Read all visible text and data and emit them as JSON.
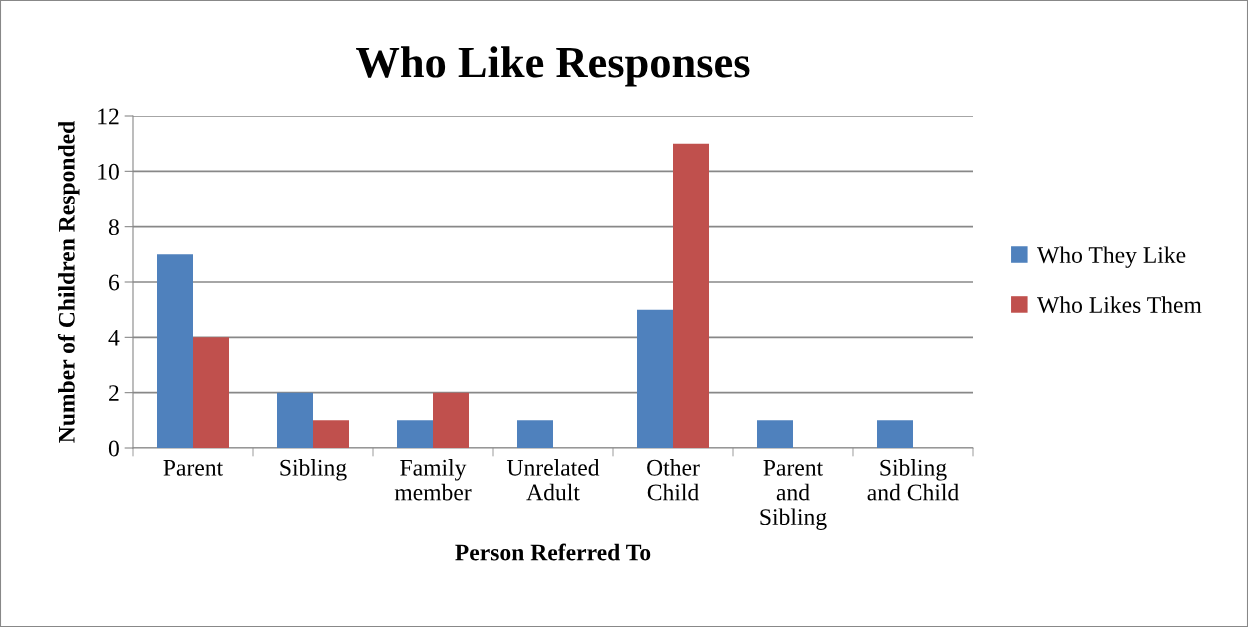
{
  "chart_data": {
    "type": "bar",
    "title": "Who Like Responses",
    "xlabel": "Person Referred To",
    "ylabel": "Number of Children Responded",
    "categories": [
      "Parent",
      "Sibling",
      "Family\nmember",
      "Unrelated\nAdult",
      "Other\nChild",
      "Parent\nand\nSibling",
      "Sibling\nand Child"
    ],
    "series": [
      {
        "name": "Who They Like",
        "color": "#4f81bd",
        "values": [
          7,
          2,
          1,
          1,
          5,
          1,
          1
        ]
      },
      {
        "name": "Who Likes Them",
        "color": "#c0504d",
        "values": [
          4,
          1,
          2,
          0,
          11,
          0,
          0
        ]
      }
    ],
    "ylim": [
      0,
      12
    ],
    "yticks": [
      0,
      2,
      4,
      6,
      8,
      10,
      12
    ],
    "grid": "y",
    "legend": "right"
  }
}
